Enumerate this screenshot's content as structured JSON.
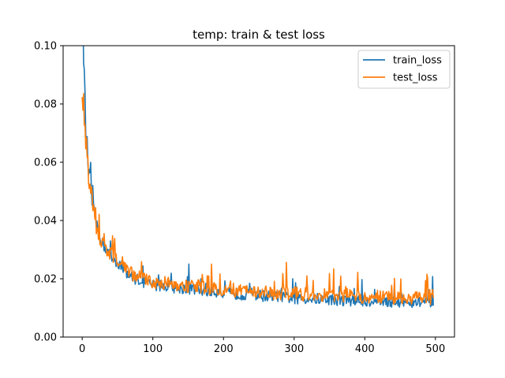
{
  "chart_data": {
    "type": "line",
    "title": "temp: train & test loss",
    "xlabel": "",
    "ylabel": "",
    "xlim": [
      -27,
      527
    ],
    "ylim": [
      0.0,
      0.1
    ],
    "x_ticks": [
      0,
      100,
      200,
      300,
      400,
      500
    ],
    "x_tick_labels": [
      "0",
      "100",
      "200",
      "300",
      "400",
      "500"
    ],
    "y_ticks": [
      0.0,
      0.02,
      0.04,
      0.06,
      0.08,
      0.1
    ],
    "y_tick_labels": [
      "0.00",
      "0.02",
      "0.04",
      "0.06",
      "0.08",
      "0.10"
    ],
    "legend_position": "top-right",
    "grid": false,
    "series": [
      {
        "name": "train_loss",
        "color": "#1f77b4",
        "x": [
          0,
          5,
          10,
          15,
          20,
          25,
          30,
          35,
          40,
          45,
          50,
          55,
          60,
          65,
          70,
          75,
          80,
          85,
          90,
          95,
          100,
          110,
          120,
          130,
          140,
          150,
          160,
          170,
          180,
          190,
          200,
          205,
          210,
          220,
          230,
          240,
          250,
          260,
          270,
          280,
          290,
          300,
          310,
          320,
          330,
          340,
          350,
          360,
          370,
          380,
          390,
          400,
          410,
          420,
          430,
          440,
          450,
          460,
          470,
          480,
          490,
          495
        ],
        "values": [
          0.115,
          0.07,
          0.053,
          0.045,
          0.038,
          0.034,
          0.031,
          0.029,
          0.027,
          0.026,
          0.025,
          0.024,
          0.0225,
          0.021,
          0.02,
          0.0195,
          0.019,
          0.0185,
          0.018,
          0.0175,
          0.017,
          0.0172,
          0.0168,
          0.0165,
          0.0162,
          0.016,
          0.0158,
          0.0155,
          0.0152,
          0.015,
          0.0148,
          0.0145,
          0.0143,
          0.0142,
          0.014,
          0.0138,
          0.0137,
          0.0135,
          0.0133,
          0.0132,
          0.013,
          0.0128,
          0.0127,
          0.0126,
          0.0125,
          0.0124,
          0.0123,
          0.0122,
          0.0121,
          0.012,
          0.0119,
          0.0118,
          0.0118,
          0.0117,
          0.0116,
          0.0116,
          0.0115,
          0.0115,
          0.0114,
          0.0114,
          0.0113,
          0.011
        ],
        "noise": 0.0025
      },
      {
        "name": "test_loss",
        "color": "#ff7f0e",
        "x": [
          0,
          5,
          10,
          15,
          20,
          25,
          30,
          35,
          40,
          45,
          50,
          55,
          60,
          65,
          70,
          75,
          80,
          85,
          90,
          95,
          100,
          110,
          120,
          130,
          140,
          150,
          160,
          170,
          180,
          190,
          200,
          205,
          210,
          220,
          230,
          240,
          250,
          260,
          270,
          280,
          290,
          300,
          310,
          320,
          330,
          340,
          350,
          360,
          370,
          380,
          390,
          400,
          410,
          420,
          430,
          440,
          450,
          460,
          470,
          480,
          490,
          495
        ],
        "values": [
          0.085,
          0.065,
          0.052,
          0.044,
          0.037,
          0.033,
          0.031,
          0.029,
          0.028,
          0.027,
          0.026,
          0.025,
          0.024,
          0.0225,
          0.021,
          0.0205,
          0.02,
          0.0195,
          0.019,
          0.0185,
          0.018,
          0.018,
          0.0178,
          0.0175,
          0.0172,
          0.017,
          0.0168,
          0.0165,
          0.0162,
          0.016,
          0.0158,
          0.0156,
          0.0155,
          0.0153,
          0.0152,
          0.015,
          0.0148,
          0.0147,
          0.0145,
          0.0144,
          0.0143,
          0.0142,
          0.014,
          0.0139,
          0.0138,
          0.0137,
          0.0136,
          0.0135,
          0.0134,
          0.0133,
          0.0132,
          0.0131,
          0.013,
          0.013,
          0.0129,
          0.0128,
          0.0128,
          0.0127,
          0.0127,
          0.0126,
          0.0126,
          0.012
        ],
        "noise": 0.003
      }
    ]
  }
}
